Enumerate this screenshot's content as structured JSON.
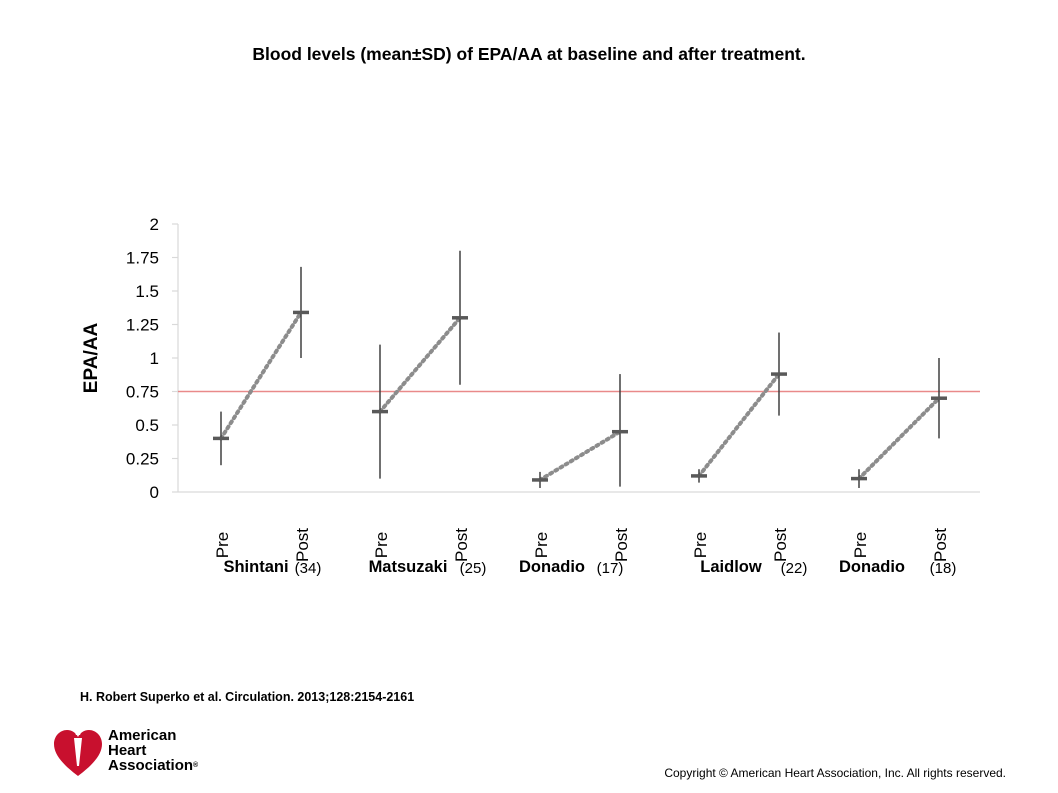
{
  "slide": {
    "title": "Blood levels (mean±SD) of EPA/AA at baseline and after treatment.",
    "citation": "H. Robert Superko et al. Circulation. 2013;128:2154-2161",
    "copyright": "Copyright © American Heart Association, Inc. All rights reserved."
  },
  "logo": {
    "line1": "American",
    "line2": "Heart",
    "line3": "Association",
    "reg": "®",
    "color": "#c8102e"
  },
  "chart_data": {
    "type": "scatter",
    "title": "",
    "ylabel": "EPA/AA",
    "xlabel": "",
    "ylim": [
      0,
      2
    ],
    "yticks": [
      0,
      0.25,
      0.5,
      0.75,
      1,
      1.25,
      1.5,
      1.75,
      2
    ],
    "ytick_labels": [
      "0",
      "0.25",
      "0.5",
      "0.75",
      "1",
      "1.25",
      "1.5",
      "1.75",
      "2"
    ],
    "grid": false,
    "reference_line": {
      "y": 0.75,
      "color": "#e98a8a"
    },
    "marker_color": "#595959",
    "studies": [
      {
        "name": "Shintani",
        "n": "(34)",
        "pre": {
          "label": "Pre",
          "mean": 0.4,
          "low": 0.2,
          "high": 0.6
        },
        "post": {
          "label": "Post",
          "mean": 1.34,
          "low": 1.0,
          "high": 1.68
        }
      },
      {
        "name": "Matsuzaki",
        "n": "(25)",
        "pre": {
          "label": "Pre",
          "mean": 0.6,
          "low": 0.1,
          "high": 1.1
        },
        "post": {
          "label": "Post",
          "mean": 1.3,
          "low": 0.8,
          "high": 1.8
        }
      },
      {
        "name": "Donadio",
        "n": "(17)",
        "pre": {
          "label": "Pre",
          "mean": 0.09,
          "low": 0.03,
          "high": 0.15
        },
        "post": {
          "label": "Post",
          "mean": 0.45,
          "low": 0.04,
          "high": 0.88
        }
      },
      {
        "name": "Laidlow",
        "n": "(22)",
        "pre": {
          "label": "Pre",
          "mean": 0.12,
          "low": 0.07,
          "high": 0.17
        },
        "post": {
          "label": "Post",
          "mean": 0.88,
          "low": 0.57,
          "high": 1.19
        }
      },
      {
        "name": "Donadio",
        "n": "(18)",
        "pre": {
          "label": "Pre",
          "mean": 0.1,
          "low": 0.03,
          "high": 0.17
        },
        "post": {
          "label": "Post",
          "mean": 0.7,
          "low": 0.4,
          "high": 1.0
        }
      }
    ]
  }
}
